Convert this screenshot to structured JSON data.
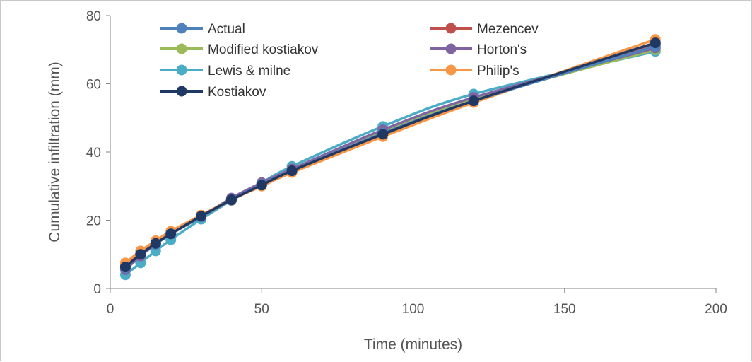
{
  "chart_data": {
    "type": "line",
    "xlabel": "Time (minutes)",
    "ylabel": "Cumulative infiltration (mm)",
    "xlim": [
      0,
      200
    ],
    "ylim": [
      0,
      80
    ],
    "xticks": [
      0,
      50,
      100,
      150,
      200
    ],
    "yticks": [
      0,
      20,
      40,
      60,
      80
    ],
    "grid": false,
    "legend_position": "top (inside plot, two columns)",
    "x": [
      5,
      10,
      15,
      20,
      30,
      40,
      50,
      60,
      90,
      120,
      180
    ],
    "series": [
      {
        "name": "Actual",
        "color": "#4F81BD",
        "values": [
          6.0,
          10.0,
          13.0,
          16.0,
          21.0,
          26.0,
          30.5,
          34.5,
          45.5,
          55.0,
          71.0
        ]
      },
      {
        "name": "Mezencev",
        "color": "#C0504D",
        "values": [
          6.5,
          10.3,
          13.3,
          16.0,
          21.0,
          25.9,
          30.4,
          34.5,
          45.6,
          55.2,
          71.5
        ]
      },
      {
        "name": "Modified kostiakov",
        "color": "#9BBB59",
        "values": [
          6.2,
          10.0,
          13.2,
          16.0,
          21.0,
          26.0,
          30.6,
          35.0,
          46.0,
          55.5,
          70.0
        ]
      },
      {
        "name": "Horton's",
        "color": "#8064A2",
        "values": [
          5.5,
          9.5,
          13.0,
          16.0,
          21.0,
          26.5,
          31.0,
          35.0,
          46.5,
          56.0,
          70.5
        ]
      },
      {
        "name": "Lewis & milne",
        "color": "#4BACC6",
        "values": [
          4.0,
          7.5,
          11.0,
          14.3,
          20.3,
          25.8,
          31.0,
          35.8,
          47.5,
          57.0,
          69.5
        ]
      },
      {
        "name": "Philip's",
        "color": "#F79646",
        "values": [
          7.5,
          11.0,
          14.0,
          16.8,
          21.5,
          26.0,
          30.0,
          34.0,
          44.5,
          54.5,
          73.0
        ]
      },
      {
        "name": "Kostiakov",
        "color": "#1F3864",
        "values": [
          6.3,
          10.0,
          13.2,
          16.0,
          21.2,
          26.0,
          30.3,
          34.5,
          45.2,
          55.0,
          72.0
        ]
      }
    ]
  }
}
